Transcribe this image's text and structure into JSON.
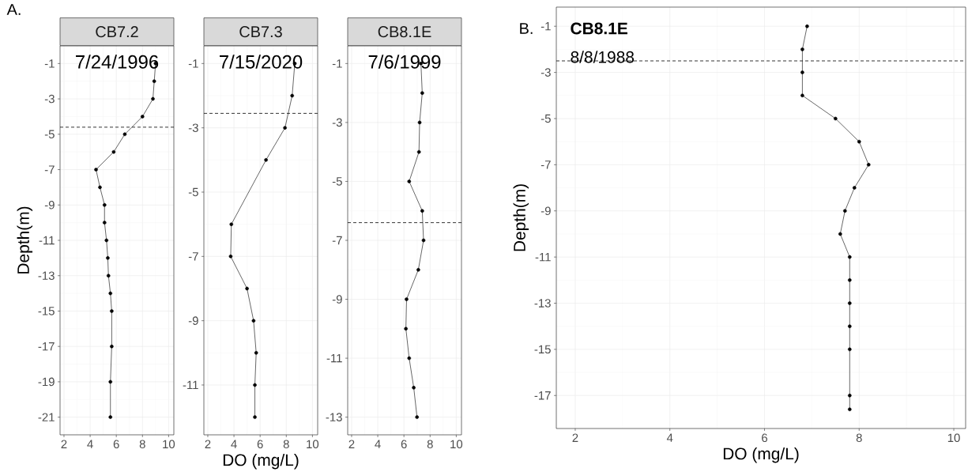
{
  "chart_data": [
    {
      "type": "line",
      "title": "CB7.2",
      "subtitle": "7/24/1996",
      "ylabel": "Depth(m)",
      "annotations": [
        "A."
      ],
      "grid": true,
      "marker": "circle",
      "line_style": "solid",
      "xlim": [
        1.7,
        10.4
      ],
      "ylim": [
        -22,
        0
      ],
      "xticks": [
        2,
        4,
        6,
        8,
        10
      ],
      "yticks": [
        -1,
        -3,
        -5,
        -7,
        -9,
        -11,
        -13,
        -15,
        -17,
        -19,
        -21
      ],
      "ref_lines": [
        {
          "axis": "y",
          "value": -4.6,
          "line_style": "dashed",
          "color": "#000000"
        }
      ],
      "series": [
        {
          "color": "#000000",
          "x": [
            9.0,
            8.9,
            8.8,
            8.0,
            6.65,
            5.8,
            4.45,
            4.75,
            5.1,
            5.1,
            5.25,
            5.35,
            5.4,
            5.55,
            5.65,
            5.65,
            5.55,
            5.55
          ],
          "values": [
            -1,
            -2,
            -3,
            -4,
            -5,
            -6,
            -7,
            -8,
            -9,
            -10,
            -11,
            -12,
            -13,
            -14,
            -15,
            -17,
            -19,
            -21
          ]
        }
      ]
    },
    {
      "type": "line",
      "title": "CB7.3",
      "subtitle": "7/15/2020",
      "xlabel": "DO (mg/L)",
      "grid": true,
      "marker": "circle",
      "line_style": "solid",
      "xlim": [
        1.7,
        10.4
      ],
      "ylim": [
        -12.55,
        -0.45
      ],
      "xticks": [
        2,
        4,
        6,
        8,
        10
      ],
      "yticks": [
        -1,
        -3,
        -5,
        -7,
        -9,
        -11
      ],
      "ref_lines": [
        {
          "axis": "y",
          "value": -2.55,
          "line_style": "dashed",
          "color": "#000000"
        }
      ],
      "series": [
        {
          "color": "#000000",
          "x": [
            8.65,
            8.45,
            7.9,
            6.45,
            3.8,
            3.75,
            5.0,
            5.5,
            5.7,
            5.6,
            5.6
          ],
          "values": [
            -1,
            -2,
            -3,
            -4,
            -6,
            -7,
            -8,
            -9,
            -10,
            -11,
            -12
          ]
        }
      ]
    },
    {
      "type": "line",
      "title": "CB8.1E",
      "subtitle": "7/6/1999",
      "grid": true,
      "marker": "circle",
      "line_style": "solid",
      "xlim": [
        1.7,
        10.4
      ],
      "ylim": [
        -13.6,
        -0.4
      ],
      "xticks": [
        2,
        4,
        6,
        8,
        10
      ],
      "yticks": [
        -1,
        -3,
        -5,
        -7,
        -9,
        -11,
        -13
      ],
      "ref_lines": [
        {
          "axis": "y",
          "value": -6.4,
          "line_style": "dashed",
          "color": "#000000"
        }
      ],
      "series": [
        {
          "color": "#000000",
          "x": [
            7.3,
            7.4,
            7.2,
            7.15,
            6.4,
            7.4,
            7.5,
            7.1,
            6.2,
            6.15,
            6.4,
            6.75,
            7.0
          ],
          "values": [
            -1,
            -2,
            -3,
            -4,
            -5,
            -6,
            -7,
            -8,
            -9,
            -10,
            -11,
            -12,
            -13
          ]
        }
      ]
    },
    {
      "type": "line",
      "title": "CB8.1E",
      "subtitle": "8/8/1988",
      "xlabel": "DO (mg/L)",
      "ylabel": "Depth(m)",
      "annotations": [
        "B."
      ],
      "grid": true,
      "marker": "circle",
      "line_style": "solid",
      "xlim": [
        1.6,
        10.25
      ],
      "ylim": [
        -18.43,
        -0.17
      ],
      "xticks": [
        2,
        4,
        6,
        8,
        10
      ],
      "yticks": [
        -1,
        -3,
        -5,
        -7,
        -9,
        -11,
        -13,
        -15,
        -17
      ],
      "ref_lines": [
        {
          "axis": "y",
          "value": -2.5,
          "line_style": "dashed",
          "color": "#000000"
        }
      ],
      "series": [
        {
          "color": "#000000",
          "x": [
            6.9,
            6.8,
            6.8,
            6.8,
            7.5,
            8.0,
            8.2,
            7.9,
            7.7,
            7.6,
            7.8,
            7.8,
            7.8,
            7.8,
            7.8,
            7.8,
            7.8
          ],
          "values": [
            -1,
            -2,
            -3,
            -4,
            -5,
            -6,
            -7,
            -8,
            -9,
            -10,
            -11,
            -12,
            -13,
            -14,
            -15,
            -17,
            -17.6
          ]
        }
      ]
    }
  ]
}
